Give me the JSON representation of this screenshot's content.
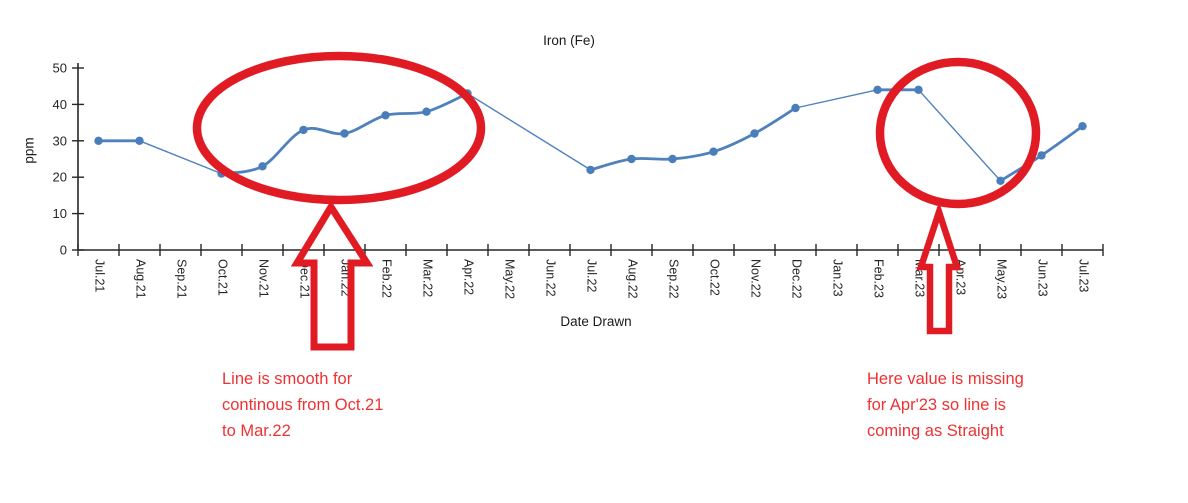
{
  "header": {
    "title": "Iron (Fe)"
  },
  "axes": {
    "y_label": "ppm",
    "x_label": "Date Drawn"
  },
  "chart_data": {
    "type": "line",
    "title": "Iron (Fe)",
    "xlabel": "Date Drawn",
    "ylabel": "ppm",
    "ylim": [
      0,
      50
    ],
    "yticks": [
      0,
      10,
      20,
      30,
      40,
      50
    ],
    "grid": false,
    "legend": "none",
    "line_color": "#4f81bd",
    "marker_color": "#4a7ebb",
    "categories": [
      "Jul.21",
      "Aug.21",
      "Sep.21",
      "Oct.21",
      "Nov.21",
      "Dec.21",
      "Jan.22",
      "Feb.22",
      "Mar.22",
      "Apr.22",
      "May.22",
      "Jun.22",
      "Jul.22",
      "Aug.22",
      "Sep.22",
      "Oct.22",
      "Nov.22",
      "Dec.22",
      "Jan.23",
      "Feb.23",
      "Mar.23",
      "Apr.23",
      "May.23",
      "Jun.23",
      "Jul.23"
    ],
    "series": [
      {
        "name": "Iron (Fe)",
        "values": [
          30,
          30,
          null,
          21,
          23,
          33,
          32,
          37,
          38,
          43,
          null,
          null,
          22,
          25,
          25,
          27,
          32,
          39,
          null,
          44,
          44,
          null,
          19,
          26,
          34
        ]
      }
    ]
  },
  "annotations": {
    "left_note": "Line is smooth for\ncontinous from Oct.21\nto Mar.22",
    "right_note": "Here value is missing\nfor Apr'23 so line is\ncoming as Straight",
    "shape_color": "#e01b24",
    "text_color": "#ee3233"
  }
}
